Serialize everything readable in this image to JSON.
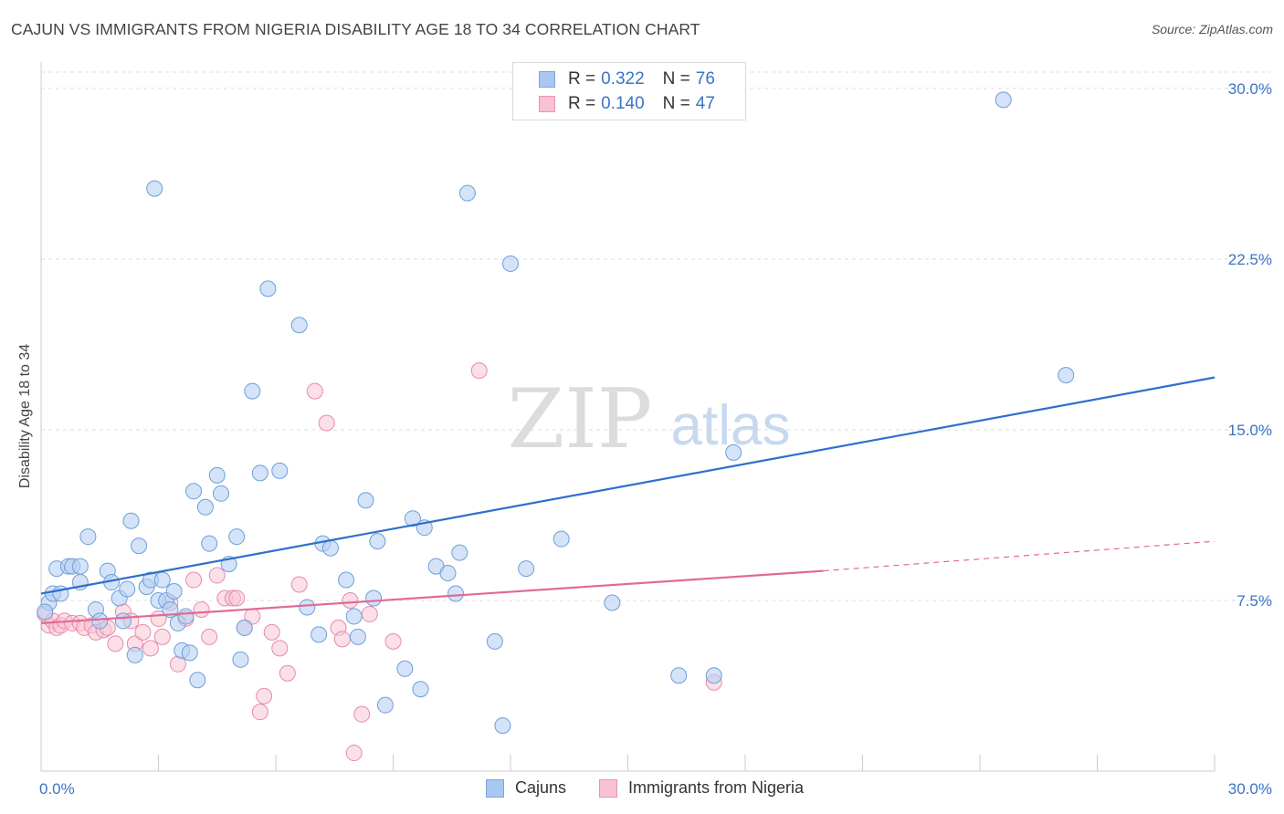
{
  "title": "CAJUN VS IMMIGRANTS FROM NIGERIA DISABILITY AGE 18 TO 34 CORRELATION CHART",
  "source": "Source: ZipAtlas.com",
  "watermark": {
    "zip": "ZIP",
    "atlas": "atlas"
  },
  "legend_stats": [
    {
      "r_label": "R =",
      "r_value": "0.322",
      "n_label": "N =",
      "n_value": "76",
      "color": "#a9c8f0",
      "border": "#7aa6e0"
    },
    {
      "r_label": "R =",
      "r_value": "0.140",
      "n_label": "N =",
      "n_value": "47",
      "color": "#f7c2d3",
      "border": "#ec93b1"
    }
  ],
  "colors": {
    "cajun_fill": "#b7d1f3",
    "cajun_stroke": "#6e9fd8",
    "cajun_line": "#2f6fcc",
    "nigeria_fill": "#f8c6d5",
    "nigeria_stroke": "#e88aab",
    "nigeria_line": "#e06a94",
    "tick_label": "#3a74c4",
    "grid": "#dddddd"
  },
  "chart_data": {
    "type": "scatter",
    "title": "CAJUN VS IMMIGRANTS FROM NIGERIA DISABILITY AGE 18 TO 34 CORRELATION CHART",
    "xlabel": "",
    "ylabel": "Disability Age 18 to 34",
    "xlim": [
      0,
      30
    ],
    "ylim": [
      0,
      31
    ],
    "x_tick_labels": [
      "0.0%",
      "30.0%"
    ],
    "y_ticks": [
      7.5,
      15.0,
      22.5,
      30.0
    ],
    "y_tick_labels": [
      "7.5%",
      "15.0%",
      "22.5%",
      "30.0%"
    ],
    "grid": true,
    "legend_position": "bottom",
    "series": [
      {
        "name": "Cajuns",
        "trend": {
          "x": [
            0,
            30
          ],
          "y": [
            7.8,
            17.3
          ]
        },
        "points": [
          [
            0.2,
            7.4
          ],
          [
            0.3,
            7.8
          ],
          [
            0.5,
            7.8
          ],
          [
            0.4,
            8.9
          ],
          [
            0.7,
            9.0
          ],
          [
            0.8,
            9.0
          ],
          [
            1.0,
            9.0
          ],
          [
            1.0,
            8.3
          ],
          [
            1.2,
            10.3
          ],
          [
            1.4,
            7.1
          ],
          [
            1.5,
            6.6
          ],
          [
            1.7,
            8.8
          ],
          [
            1.8,
            8.3
          ],
          [
            2.0,
            7.6
          ],
          [
            2.1,
            6.6
          ],
          [
            2.2,
            8.0
          ],
          [
            2.3,
            11.0
          ],
          [
            2.4,
            5.1
          ],
          [
            2.5,
            9.9
          ],
          [
            2.7,
            8.1
          ],
          [
            2.8,
            8.4
          ],
          [
            2.9,
            25.6
          ],
          [
            3.0,
            7.5
          ],
          [
            3.1,
            8.4
          ],
          [
            3.2,
            7.5
          ],
          [
            3.3,
            7.1
          ],
          [
            3.4,
            7.9
          ],
          [
            3.5,
            6.5
          ],
          [
            3.6,
            5.3
          ],
          [
            3.7,
            6.8
          ],
          [
            3.8,
            5.2
          ],
          [
            3.9,
            12.3
          ],
          [
            4.0,
            4.0
          ],
          [
            4.2,
            11.6
          ],
          [
            4.3,
            10.0
          ],
          [
            4.5,
            13.0
          ],
          [
            4.6,
            12.2
          ],
          [
            4.8,
            9.1
          ],
          [
            5.0,
            10.3
          ],
          [
            5.1,
            4.9
          ],
          [
            5.2,
            6.3
          ],
          [
            5.4,
            16.7
          ],
          [
            5.6,
            13.1
          ],
          [
            5.8,
            21.2
          ],
          [
            6.1,
            13.2
          ],
          [
            6.6,
            19.6
          ],
          [
            6.8,
            7.2
          ],
          [
            7.1,
            6.0
          ],
          [
            7.2,
            10.0
          ],
          [
            7.4,
            9.8
          ],
          [
            7.8,
            8.4
          ],
          [
            8.0,
            6.8
          ],
          [
            8.1,
            5.9
          ],
          [
            8.3,
            11.9
          ],
          [
            8.5,
            7.6
          ],
          [
            8.6,
            10.1
          ],
          [
            8.8,
            2.9
          ],
          [
            9.3,
            4.5
          ],
          [
            9.5,
            11.1
          ],
          [
            9.7,
            3.6
          ],
          [
            9.8,
            10.7
          ],
          [
            10.1,
            9.0
          ],
          [
            10.4,
            8.7
          ],
          [
            10.6,
            7.8
          ],
          [
            10.7,
            9.6
          ],
          [
            10.9,
            25.4
          ],
          [
            11.6,
            5.7
          ],
          [
            11.8,
            2.0
          ],
          [
            12.0,
            22.3
          ],
          [
            12.4,
            8.9
          ],
          [
            13.3,
            10.2
          ],
          [
            14.6,
            7.4
          ],
          [
            16.3,
            4.2
          ],
          [
            17.7,
            14.0
          ],
          [
            24.6,
            29.5
          ],
          [
            26.2,
            17.4
          ]
        ]
      },
      {
        "name": "Immigrants from Nigeria",
        "trend": {
          "x": [
            0,
            20
          ],
          "y": [
            6.5,
            8.8
          ]
        },
        "trend_dashed": {
          "x": [
            20,
            30
          ],
          "y": [
            8.8,
            10.1
          ]
        },
        "points": [
          [
            0.1,
            6.9
          ],
          [
            0.2,
            6.4
          ],
          [
            0.3,
            6.6
          ],
          [
            0.4,
            6.3
          ],
          [
            0.5,
            6.4
          ],
          [
            0.6,
            6.6
          ],
          [
            0.8,
            6.5
          ],
          [
            1.0,
            6.5
          ],
          [
            1.1,
            6.3
          ],
          [
            1.3,
            6.4
          ],
          [
            1.4,
            6.1
          ],
          [
            1.6,
            6.2
          ],
          [
            1.7,
            6.3
          ],
          [
            1.9,
            5.6
          ],
          [
            2.1,
            7.0
          ],
          [
            2.3,
            6.6
          ],
          [
            2.4,
            5.6
          ],
          [
            2.6,
            6.1
          ],
          [
            2.8,
            5.4
          ],
          [
            3.0,
            6.7
          ],
          [
            3.1,
            5.9
          ],
          [
            3.3,
            7.4
          ],
          [
            3.5,
            4.7
          ],
          [
            3.7,
            6.7
          ],
          [
            3.9,
            8.4
          ],
          [
            4.1,
            7.1
          ],
          [
            4.3,
            5.9
          ],
          [
            4.5,
            8.6
          ],
          [
            4.7,
            7.6
          ],
          [
            4.9,
            7.6
          ],
          [
            5.0,
            7.6
          ],
          [
            5.2,
            6.3
          ],
          [
            5.4,
            6.8
          ],
          [
            5.6,
            2.6
          ],
          [
            5.7,
            3.3
          ],
          [
            5.9,
            6.1
          ],
          [
            6.1,
            5.4
          ],
          [
            6.3,
            4.3
          ],
          [
            6.6,
            8.2
          ],
          [
            7.0,
            16.7
          ],
          [
            7.3,
            15.3
          ],
          [
            7.6,
            6.3
          ],
          [
            7.9,
            7.5
          ],
          [
            8.2,
            2.5
          ],
          [
            8.4,
            6.9
          ],
          [
            9.0,
            5.7
          ],
          [
            17.2,
            3.9
          ]
        ]
      }
    ]
  },
  "bottom_legend": [
    "Cajuns",
    "Immigrants from Nigeria"
  ],
  "extra_points": {
    "cajun_extra": [
      [
        0.1,
        7.0
      ],
      [
        17.2,
        4.2
      ]
    ],
    "nigeria_extra": [
      [
        8.0,
        0.8
      ],
      [
        11.2,
        17.6
      ],
      [
        7.7,
        5.8
      ]
    ]
  }
}
